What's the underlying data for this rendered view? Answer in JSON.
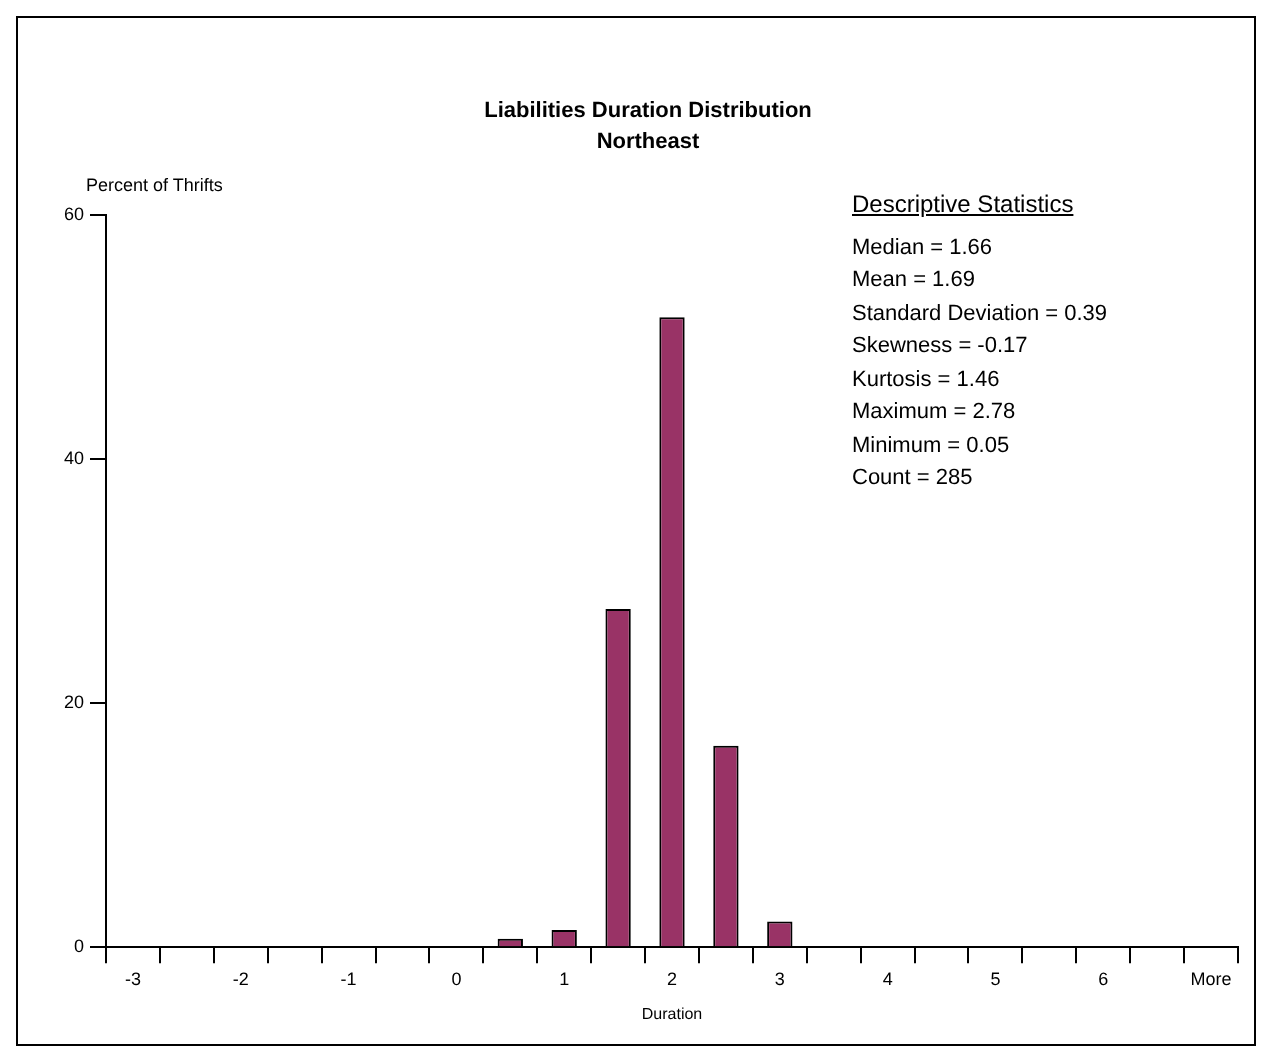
{
  "chart_data": {
    "type": "bar",
    "title": "Liabilities Duration Distribution",
    "subtitle": "Northeast",
    "xlabel": "Duration",
    "ylabel": "Percent of Thrifts",
    "categories": [
      "-3",
      null,
      "-2",
      null,
      "-1",
      null,
      "0",
      null,
      "1",
      null,
      "2",
      null,
      "3",
      null,
      "4",
      null,
      "5",
      null,
      "6",
      null,
      "More"
    ],
    "values": [
      0,
      0,
      0,
      0,
      0,
      0,
      0,
      0.7,
      1.4,
      27.7,
      51.6,
      16.5,
      2.1,
      0,
      0,
      0,
      0,
      0,
      0,
      0,
      0
    ],
    "color": "#993366",
    "ylim": [
      0,
      60
    ],
    "yticks": [
      0,
      20,
      40,
      60
    ],
    "grid": false,
    "annotations": [
      "Descriptive Statistics",
      "Median = 1.66",
      "Mean = 1.69",
      "Standard Deviation = 0.39",
      "Skewness = -0.17",
      "Kurtosis = 1.46",
      "Maximum = 2.78",
      "Minimum = 0.05",
      "Count = 285"
    ]
  }
}
